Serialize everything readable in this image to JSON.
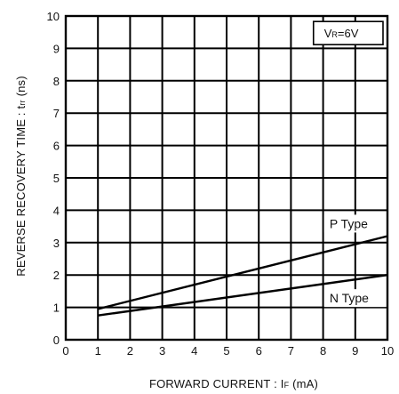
{
  "chart_data": {
    "type": "line",
    "xlabel_main": "FORWARD CURRENT : I",
    "xlabel_sub": "F",
    "xlabel_unit": " (mA)",
    "ylabel_main": "REVERSE RECOVERY TIME : t",
    "ylabel_sub": "rr",
    "ylabel_unit": " (ns)",
    "xlim": [
      0,
      10
    ],
    "ylim": [
      0,
      10
    ],
    "xticks": [
      "0",
      "1",
      "2",
      "3",
      "4",
      "5",
      "6",
      "7",
      "8",
      "9",
      "10"
    ],
    "yticks": [
      "0",
      "1",
      "2",
      "3",
      "4",
      "5",
      "6",
      "7",
      "8",
      "9",
      "10"
    ],
    "grid": true,
    "condition_label_main": "V",
    "condition_label_sub": "R",
    "condition_label_rest": "=6V",
    "series": [
      {
        "name": "P Type",
        "x": [
          1,
          10
        ],
        "y": [
          0.95,
          3.2
        ]
      },
      {
        "name": "N Type",
        "x": [
          1,
          10
        ],
        "y": [
          0.75,
          2.0
        ]
      }
    ]
  }
}
